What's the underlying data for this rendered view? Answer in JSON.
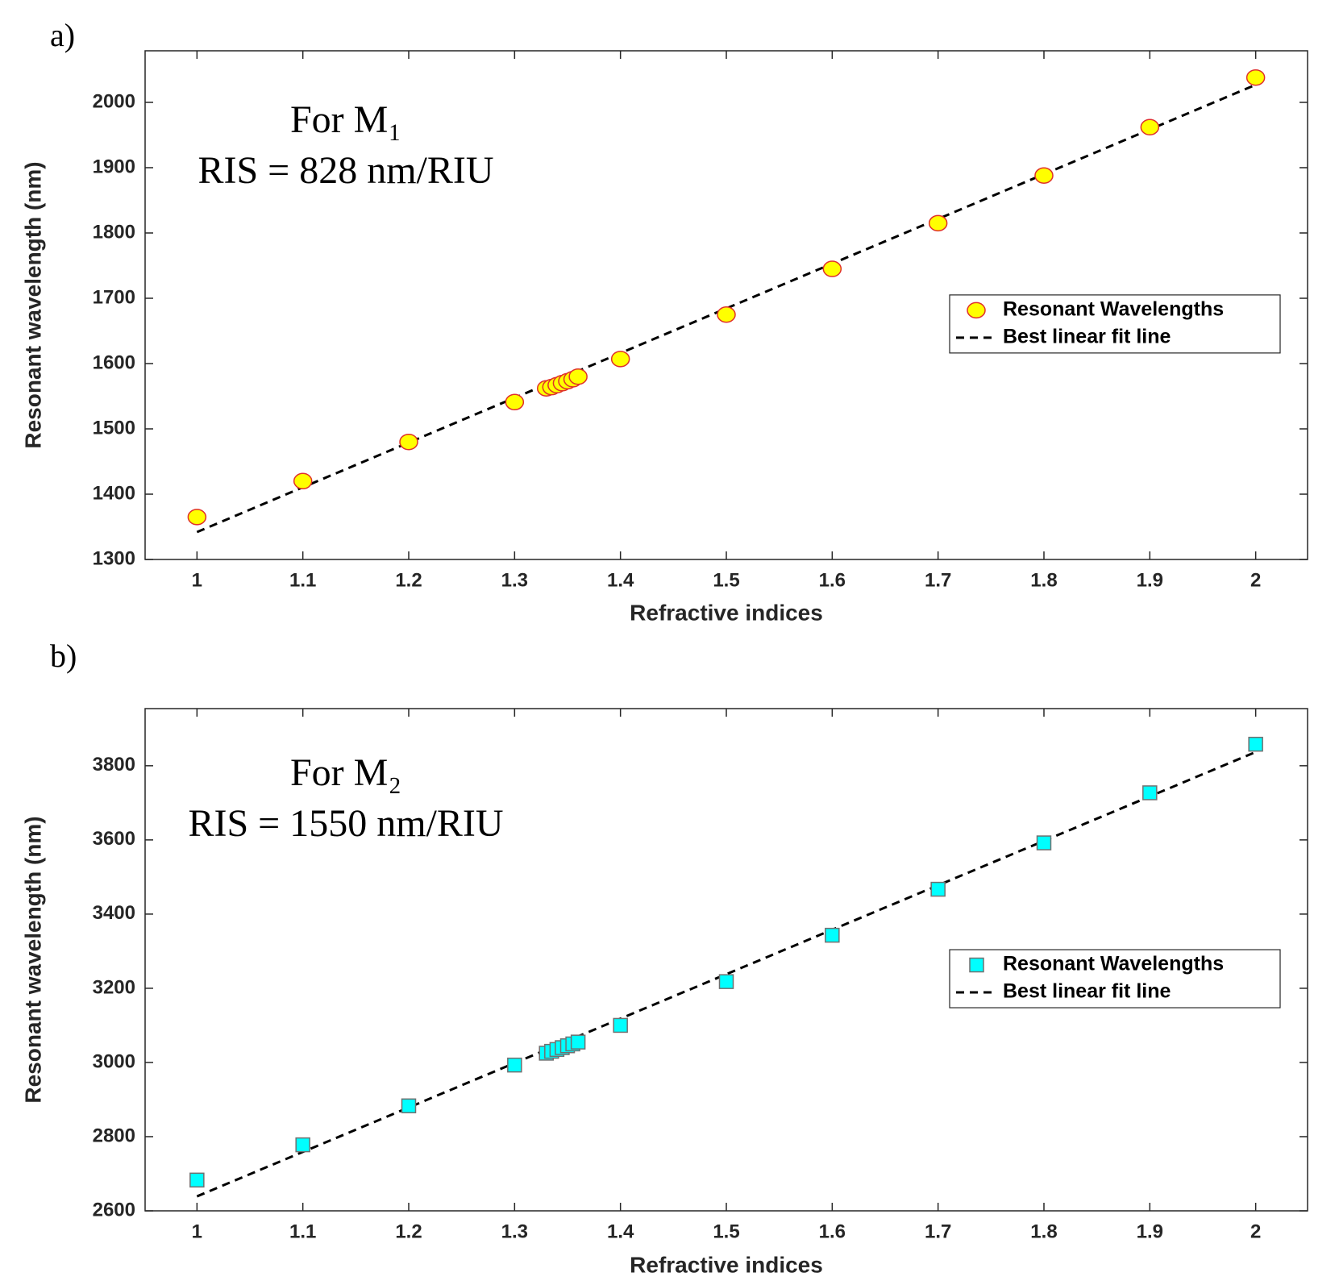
{
  "chart_data": [
    {
      "type": "scatter",
      "panel_label": "a)",
      "xlabel": "Refractive indices",
      "ylabel": "Resonant wavelength (nm)",
      "annotations": [
        "For M₁",
        "RIS = 828 nm/RIU"
      ],
      "xlim": [
        0.951,
        2.049
      ],
      "ylim": [
        1300,
        2079
      ],
      "xticks": [
        1,
        1.1,
        1.2,
        1.3,
        1.4,
        1.5,
        1.6,
        1.7,
        1.8,
        1.9,
        2
      ],
      "yticks": [
        1300,
        1400,
        1500,
        1600,
        1700,
        1800,
        1900,
        2000
      ],
      "legend": "east",
      "grid": false,
      "series": [
        {
          "name": "Resonant Wavelengths",
          "marker": "circle",
          "color": "#ffff00",
          "edgecolor": "#e0302a",
          "x": [
            1,
            1.1,
            1.2,
            1.3,
            1.33,
            1.335,
            1.34,
            1.345,
            1.35,
            1.355,
            1.36,
            1.4,
            1.5,
            1.6,
            1.7,
            1.8,
            1.9,
            2
          ],
          "values": [
            1365,
            1420,
            1480,
            1541,
            1562,
            1564,
            1567,
            1570,
            1573,
            1576,
            1580,
            1607,
            1675,
            1745,
            1815,
            1888,
            1962,
            2038
          ]
        },
        {
          "name": "Best linear fit line",
          "marker": "dashed-line",
          "color": "#000000",
          "x": [
            1,
            2
          ],
          "values": [
            1342,
            2027
          ]
        }
      ]
    },
    {
      "type": "scatter",
      "panel_label": "b)",
      "xlabel": "Refractive indices",
      "ylabel": "Resonant wavelength (nm)",
      "annotations": [
        "For M₂",
        "RIS = 1550 nm/RIU"
      ],
      "xlim": [
        0.951,
        2.049
      ],
      "ylim": [
        2600,
        3954
      ],
      "xticks": [
        1,
        1.1,
        1.2,
        1.3,
        1.4,
        1.5,
        1.6,
        1.7,
        1.8,
        1.9,
        2
      ],
      "yticks": [
        2600,
        2800,
        3000,
        3200,
        3400,
        3600,
        3800
      ],
      "legend": "east",
      "grid": false,
      "series": [
        {
          "name": "Resonant Wavelengths",
          "marker": "square",
          "color": "#00ffff",
          "edgecolor": "#707070",
          "x": [
            1,
            1.1,
            1.2,
            1.3,
            1.33,
            1.335,
            1.34,
            1.345,
            1.35,
            1.355,
            1.36,
            1.4,
            1.5,
            1.6,
            1.7,
            1.8,
            1.9,
            2
          ],
          "values": [
            2683,
            2778,
            2883,
            2993,
            3025,
            3030,
            3035,
            3040,
            3045,
            3050,
            3055,
            3100,
            3218,
            3343,
            3467,
            3592,
            3727,
            3858
          ]
        },
        {
          "name": "Best linear fit line",
          "marker": "dashed-line",
          "color": "#000000",
          "x": [
            1,
            2
          ],
          "values": [
            2639,
            3837
          ]
        }
      ]
    }
  ]
}
